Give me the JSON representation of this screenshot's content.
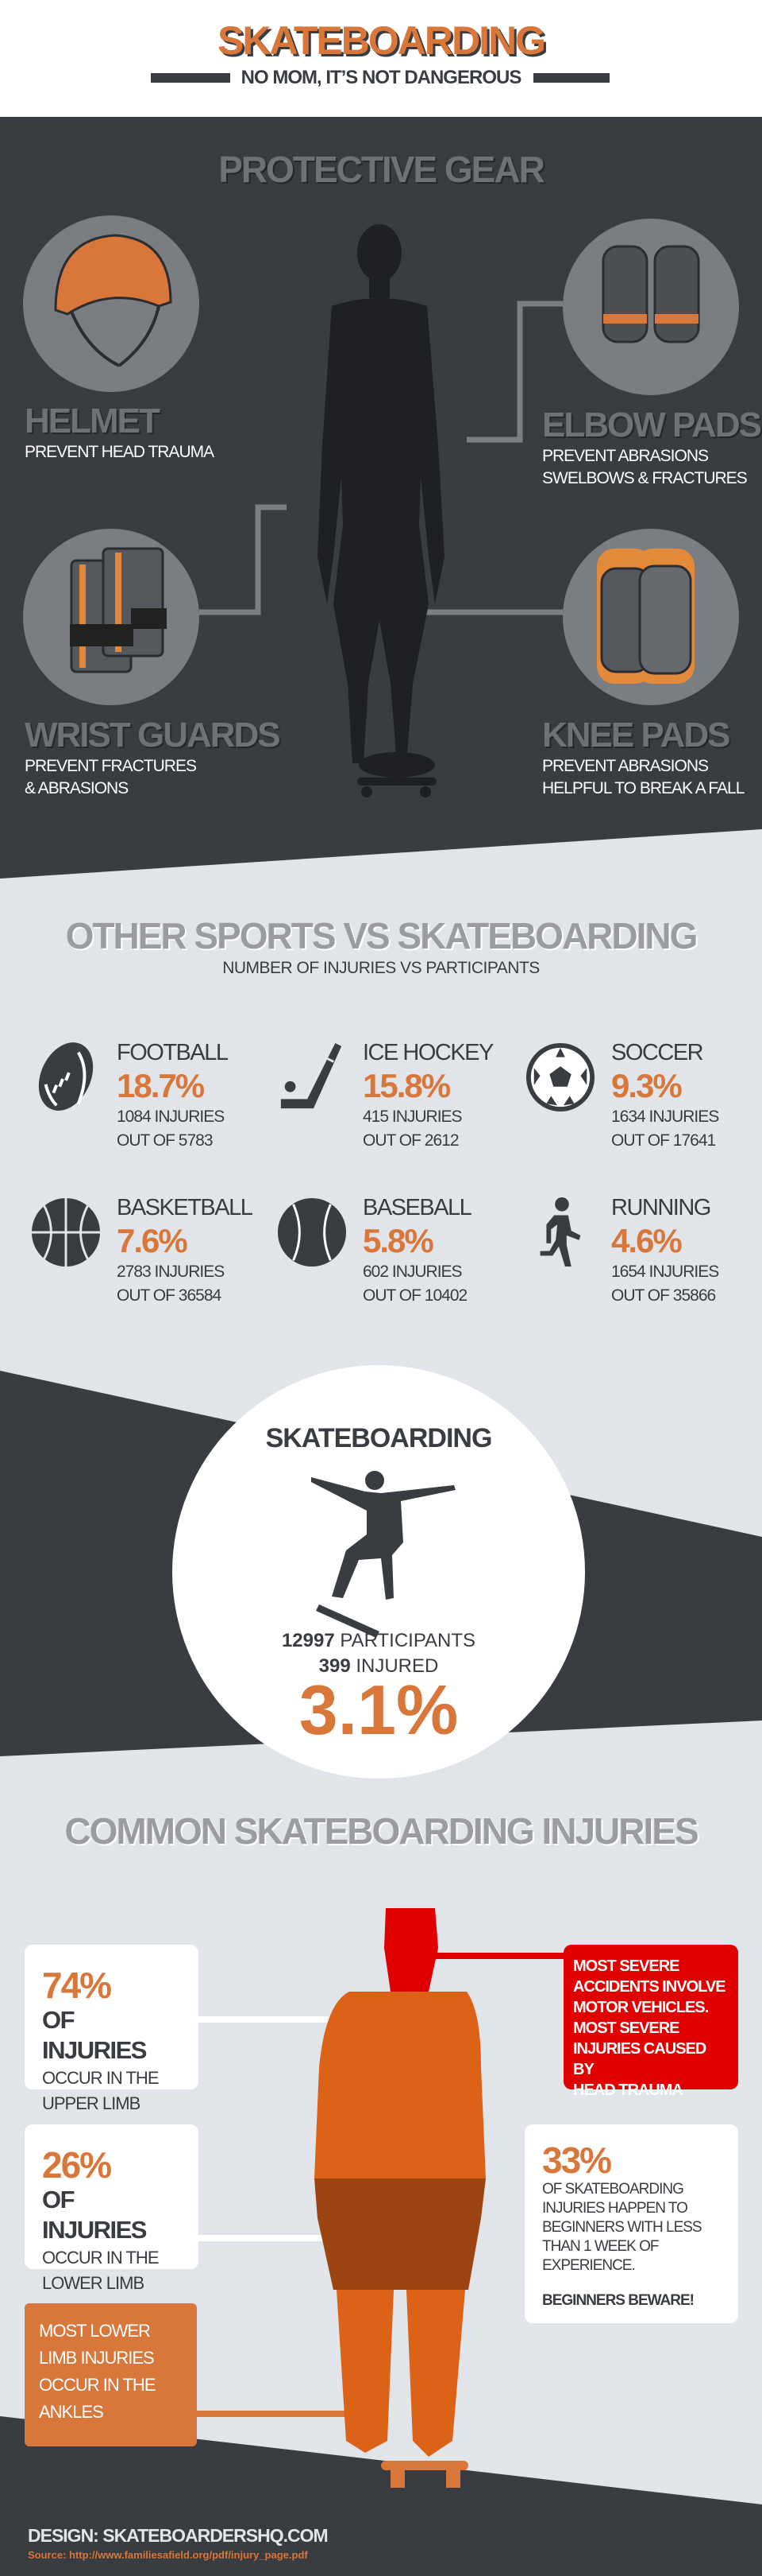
{
  "colors": {
    "dark": "#393c41",
    "light": "#e1e4e8",
    "orange": "#d9763a",
    "red": "#e10000",
    "circle": "#7a7d82"
  },
  "header": {
    "title": "SKATEBOARDING",
    "subtitle": "NO MOM, IT’S NOT DANGEROUS"
  },
  "gear": {
    "title": "PROTECTIVE GEAR",
    "items": [
      {
        "name": "HELMET",
        "desc": [
          "PREVENT HEAD TRAUMA"
        ],
        "icon": "helmet-icon"
      },
      {
        "name": "ELBOW PADS",
        "desc": [
          "PREVENT ABRASIONS",
          "SWELBOWS & FRACTURES"
        ],
        "icon": "elbow-pads-icon"
      },
      {
        "name": "WRIST GUARDS",
        "desc": [
          "PREVENT FRACTURES",
          "& ABRASIONS"
        ],
        "icon": "wrist-guards-icon"
      },
      {
        "name": "KNEE PADS",
        "desc": [
          "PREVENT ABRASIONS",
          "HELPFUL TO BREAK A FALL"
        ],
        "icon": "knee-pads-icon"
      }
    ]
  },
  "comparison": {
    "title": "OTHER SPORTS VS SKATEBOARDING",
    "subtitle": "NUMBER OF INJURIES VS PARTICIPANTS",
    "sports": [
      {
        "name": "FOOTBALL",
        "percent": "18.7%",
        "injuries": "1084 INJURIES",
        "out_of": "OUT OF 5783",
        "icon": "football-icon"
      },
      {
        "name": "ICE HOCKEY",
        "percent": "15.8%",
        "injuries": "415 INJURIES",
        "out_of": "OUT OF 2612",
        "icon": "hockey-stick-icon"
      },
      {
        "name": "SOCCER",
        "percent": "9.3%",
        "injuries": "1634 INJURIES",
        "out_of": "OUT OF 17641",
        "icon": "soccer-ball-icon"
      },
      {
        "name": "BASKETBALL",
        "percent": "7.6%",
        "injuries": "2783 INJURIES",
        "out_of": "OUT OF 36584",
        "icon": "basketball-icon"
      },
      {
        "name": "BASEBALL",
        "percent": "5.8%",
        "injuries": "602 INJURIES",
        "out_of": "OUT OF 10402",
        "icon": "baseball-icon"
      },
      {
        "name": "RUNNING",
        "percent": "4.6%",
        "injuries": "1654 INJURIES",
        "out_of": "OUT OF 35866",
        "icon": "runner-icon"
      }
    ]
  },
  "skateboarding": {
    "title": "SKATEBOARDING",
    "participants_num": "12997",
    "participants_label": "PARTICIPANTS",
    "injured_num": "399",
    "injured_label": "INJURED",
    "percent": "3.1%"
  },
  "injuries": {
    "title": "COMMON SKATEBOARDING INJURIES",
    "upper": {
      "pct": "74%",
      "big": "OF INJURIES",
      "l1": "OCCUR  IN THE",
      "l2": "UPPER LIMB"
    },
    "lower": {
      "pct": "26%",
      "big": "OF INJURIES",
      "l1": "OCCUR  IN THE",
      "l2": "LOWER LIMB"
    },
    "ankles": [
      "MOST LOWER",
      "LIMB INJURIES",
      "OCCUR IN THE",
      "ANKLES"
    ],
    "severe": [
      "MOST SEVERE",
      "ACCIDENTS INVOLVE",
      "MOTOR VEHICLES.",
      "MOST SEVERE",
      "INJURIES CAUSED BY",
      "HEAD TRAUMA"
    ],
    "beginners": {
      "pct": "33%",
      "lines": [
        "OF SKATEBOARDING",
        "INJURIES HAPPEN TO",
        "BEGINNERS WITH LESS",
        "THAN 1 WEEK OF",
        "EXPERIENCE."
      ],
      "warning": "BEGINNERS BEWARE!"
    }
  },
  "footer": {
    "design": "DESIGN: SKATEBOARDERSHQ.COM",
    "source": "Source: http://www.familiesafield.org/pdf/injury_page.pdf"
  }
}
